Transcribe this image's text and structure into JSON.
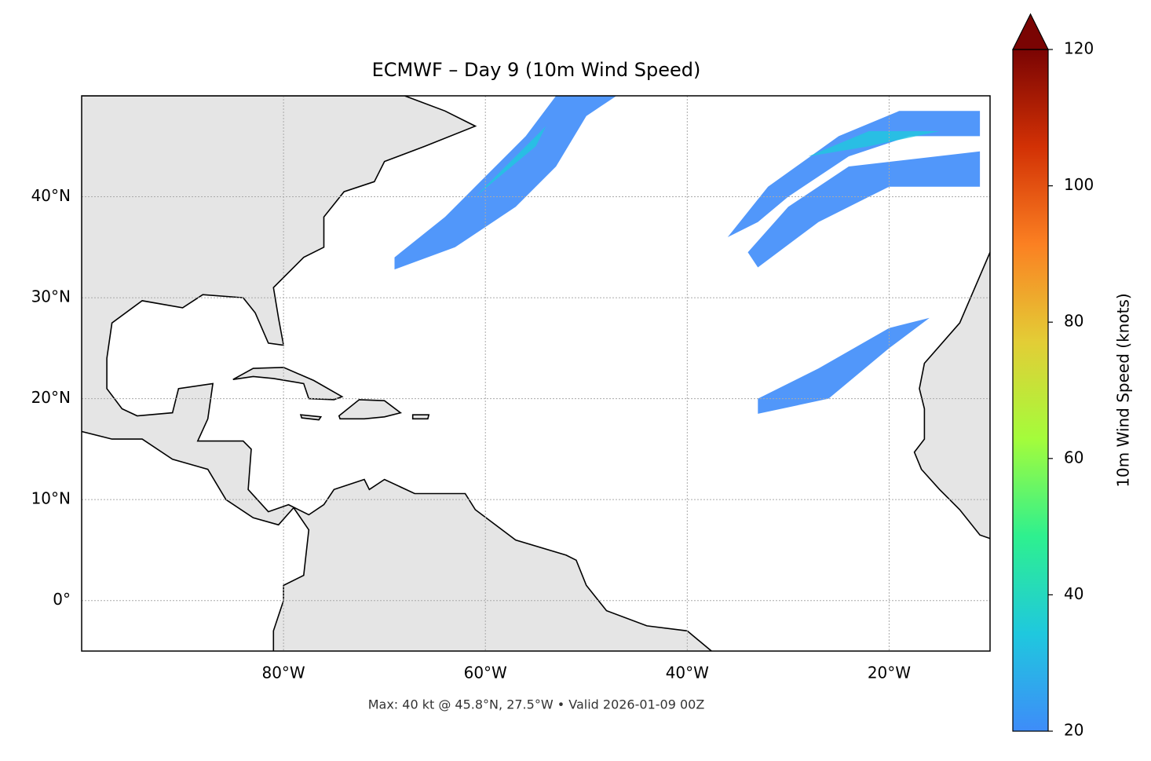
{
  "chart_data": {
    "type": "map",
    "title": "ECMWF – Day 9 (10m Wind Speed)",
    "note": "Max: 40 kt @ 45.8°N, 27.5°W • Valid 2026-01-09 00Z",
    "xlim": [
      -100,
      -10
    ],
    "ylim": [
      -5,
      50
    ],
    "xticks": [
      {
        "value": -80,
        "label": "80°W"
      },
      {
        "value": -60,
        "label": "60°W"
      },
      {
        "value": -40,
        "label": "40°W"
      },
      {
        "value": -20,
        "label": "20°W"
      }
    ],
    "yticks": [
      {
        "value": 0,
        "label": "0°"
      },
      {
        "value": 10,
        "label": "10°N"
      },
      {
        "value": 20,
        "label": "20°N"
      },
      {
        "value": 30,
        "label": "30°N"
      },
      {
        "value": 40,
        "label": "40°N"
      }
    ],
    "grid": true,
    "colorbar": {
      "label": "10m Wind Speed (knots)",
      "lim": [
        20,
        120
      ],
      "ticks": [
        20,
        40,
        60,
        80,
        100,
        120
      ],
      "colors": [
        "#3e8cf9",
        "#1fc8de",
        "#2ef08f",
        "#a4fc3b",
        "#e3cd36",
        "#fb8022",
        "#d23105",
        "#7a0403"
      ],
      "extend": "max"
    }
  }
}
